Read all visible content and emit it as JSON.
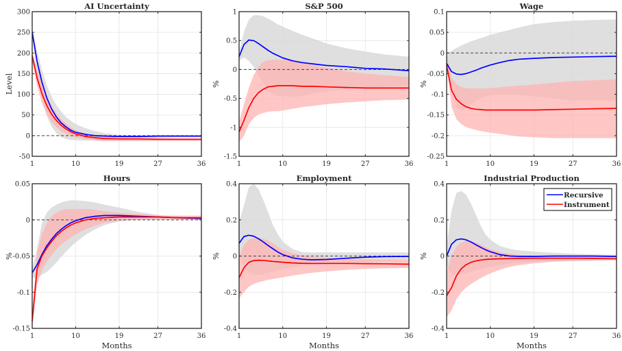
{
  "figure": {
    "legend": [
      {
        "label": "Recursive",
        "color": "#0000ff"
      },
      {
        "label": "Instrument",
        "color": "#ff0000"
      }
    ],
    "band_colors": {
      "recursive": "#d9d9d9",
      "instrument": "#ffb3b3"
    },
    "zero_line_color": "#404040"
  },
  "chart_data": [
    {
      "type": "line",
      "title": "AI Uncertainty",
      "ylabel": "Level",
      "xlabel": "",
      "x": [
        1,
        2,
        3,
        4,
        5,
        6,
        7,
        8,
        9,
        10,
        12,
        14,
        16,
        19,
        23,
        27,
        31,
        36
      ],
      "xticks": [
        "1",
        "10",
        "19",
        "27",
        "36"
      ],
      "xlim": [
        1,
        36
      ],
      "yticks": [
        "-50",
        "0",
        "50",
        "100",
        "150",
        "200",
        "250",
        "300"
      ],
      "ylim": [
        -50,
        300
      ],
      "series": [
        {
          "name": "Recursive",
          "values": [
            250,
            180,
            130,
            92,
            65,
            45,
            31,
            21,
            13,
            8,
            3,
            0,
            -1,
            -2,
            -2,
            -1,
            -1,
            -1
          ]
        },
        {
          "name": "Instrument",
          "values": [
            193,
            140,
            102,
            73,
            52,
            37,
            25,
            16,
            9,
            4,
            -2,
            -5,
            -7,
            -8,
            -8,
            -9,
            -9,
            -9
          ]
        }
      ],
      "bands": [
        {
          "name": "Recursive",
          "lower": [
            240,
            150,
            90,
            48,
            22,
            6,
            -3,
            -8,
            -10,
            -11,
            -12,
            -11,
            -10,
            -8,
            -6,
            -5,
            -4,
            -4
          ],
          "upper": [
            260,
            205,
            160,
            122,
            95,
            74,
            58,
            45,
            36,
            28,
            18,
            11,
            6,
            2,
            1,
            0,
            0,
            0
          ]
        },
        {
          "name": "Instrument",
          "lower": [
            180,
            120,
            80,
            52,
            34,
            20,
            11,
            4,
            -1,
            -4,
            -9,
            -12,
            -13,
            -13,
            -13,
            -13,
            -13,
            -13
          ]
        },
        {
          "name": "Instrument-upper",
          "upper": [
            205,
            160,
            124,
            94,
            71,
            54,
            40,
            29,
            20,
            13,
            5,
            1,
            -2,
            -4,
            -5,
            -5,
            -6,
            -6
          ]
        }
      ]
    },
    {
      "type": "line",
      "title": "S&P 500",
      "ylabel": "%",
      "xlabel": "",
      "x": [
        1,
        2,
        3,
        4,
        5,
        6,
        7,
        8,
        9,
        10,
        12,
        14,
        16,
        19,
        23,
        27,
        31,
        36
      ],
      "xticks": [
        "1",
        "10",
        "19",
        "27",
        "36"
      ],
      "xlim": [
        1,
        36
      ],
      "yticks": [
        "-1.5",
        "-1",
        "-0.5",
        "0",
        "0.5",
        "1"
      ],
      "ylim": [
        -1.5,
        1
      ],
      "series": [
        {
          "name": "Recursive",
          "values": [
            0.22,
            0.43,
            0.51,
            0.5,
            0.45,
            0.39,
            0.33,
            0.28,
            0.24,
            0.2,
            0.15,
            0.12,
            0.1,
            0.07,
            0.05,
            0.02,
            0.01,
            -0.02
          ]
        },
        {
          "name": "Instrument",
          "values": [
            -1.08,
            -0.88,
            -0.66,
            -0.5,
            -0.4,
            -0.34,
            -0.3,
            -0.29,
            -0.28,
            -0.28,
            -0.28,
            -0.29,
            -0.29,
            -0.3,
            -0.31,
            -0.32,
            -0.32,
            -0.32
          ]
        }
      ],
      "bands": [
        {
          "name": "Recursive",
          "lower": [
            0.15,
            0.21,
            0.15,
            0.05,
            -0.1,
            -0.25,
            -0.36,
            -0.43,
            -0.46,
            -0.46,
            -0.48,
            -0.46,
            -0.42,
            -0.38,
            -0.34,
            -0.31,
            -0.3,
            -0.28
          ],
          "upper": [
            0.3,
            0.65,
            0.86,
            0.94,
            0.94,
            0.92,
            0.88,
            0.83,
            0.78,
            0.74,
            0.67,
            0.6,
            0.54,
            0.45,
            0.37,
            0.31,
            0.26,
            0.22
          ]
        },
        {
          "name": "Instrument",
          "lower": [
            -1.25,
            -1.15,
            -0.95,
            -0.84,
            -0.78,
            -0.75,
            -0.73,
            -0.72,
            -0.72,
            -0.71,
            -0.68,
            -0.65,
            -0.63,
            -0.6,
            -0.57,
            -0.55,
            -0.53,
            -0.52
          ]
        },
        {
          "name": "Instrument-upper",
          "upper": [
            -0.9,
            -0.6,
            -0.32,
            -0.1,
            0.05,
            0.13,
            0.16,
            0.17,
            0.17,
            0.17,
            0.15,
            0.12,
            0.08,
            0.03,
            -0.03,
            -0.07,
            -0.1,
            -0.13
          ]
        }
      ]
    },
    {
      "type": "line",
      "title": "Wage",
      "ylabel": "%",
      "xlabel": "",
      "x": [
        1,
        2,
        3,
        4,
        5,
        6,
        7,
        8,
        9,
        10,
        12,
        14,
        16,
        19,
        23,
        27,
        31,
        36
      ],
      "xticks": [
        "1",
        "10",
        "19",
        "27",
        "36"
      ],
      "xlim": [
        1,
        36
      ],
      "yticks": [
        "-0.25",
        "-0.2",
        "-0.15",
        "-0.1",
        "-0.05",
        "0",
        "0.05",
        "0.1"
      ],
      "ylim": [
        -0.25,
        0.1
      ],
      "series": [
        {
          "name": "Recursive",
          "values": [
            -0.025,
            -0.045,
            -0.051,
            -0.052,
            -0.05,
            -0.046,
            -0.042,
            -0.037,
            -0.033,
            -0.029,
            -0.023,
            -0.018,
            -0.015,
            -0.013,
            -0.011,
            -0.01,
            -0.009,
            -0.008
          ]
        },
        {
          "name": "Instrument",
          "values": [
            -0.03,
            -0.09,
            -0.112,
            -0.123,
            -0.13,
            -0.134,
            -0.136,
            -0.137,
            -0.138,
            -0.138,
            -0.138,
            -0.138,
            -0.138,
            -0.138,
            -0.137,
            -0.136,
            -0.135,
            -0.134
          ]
        }
      ],
      "bands": [
        {
          "name": "Recursive",
          "lower": [
            -0.01,
            -0.08,
            -0.13,
            -0.14,
            -0.135,
            -0.125,
            -0.115,
            -0.11,
            -0.105,
            -0.103,
            -0.1,
            -0.1,
            -0.102,
            -0.105,
            -0.11,
            -0.115,
            -0.115,
            -0.115
          ],
          "upper": [
            0.0,
            0.005,
            0.012,
            0.018,
            0.023,
            0.028,
            0.032,
            0.036,
            0.04,
            0.044,
            0.05,
            0.056,
            0.062,
            0.07,
            0.075,
            0.078,
            0.08,
            0.081
          ]
        },
        {
          "name": "Instrument",
          "lower": [
            -0.03,
            -0.13,
            -0.16,
            -0.172,
            -0.179,
            -0.183,
            -0.186,
            -0.189,
            -0.191,
            -0.193,
            -0.196,
            -0.199,
            -0.202,
            -0.204,
            -0.206,
            -0.206,
            -0.206,
            -0.206
          ]
        },
        {
          "name": "Instrument-upper",
          "upper": [
            0.0,
            -0.06,
            -0.075,
            -0.082,
            -0.085,
            -0.086,
            -0.086,
            -0.086,
            -0.086,
            -0.085,
            -0.083,
            -0.081,
            -0.079,
            -0.076,
            -0.072,
            -0.068,
            -0.066,
            -0.064
          ]
        }
      ]
    },
    {
      "type": "line",
      "title": "Hours",
      "ylabel": "%",
      "xlabel": "Months",
      "x": [
        1,
        2,
        3,
        4,
        5,
        6,
        7,
        8,
        9,
        10,
        12,
        14,
        16,
        19,
        23,
        27,
        31,
        36
      ],
      "xticks": [
        "1",
        "10",
        "19",
        "27",
        "36"
      ],
      "xlim": [
        1,
        36
      ],
      "yticks": [
        "-0.15",
        "-0.1",
        "-0.05",
        "0",
        "0.05"
      ],
      "ylim": [
        -0.15,
        0.05
      ],
      "series": [
        {
          "name": "Recursive",
          "values": [
            -0.073,
            -0.062,
            -0.048,
            -0.036,
            -0.027,
            -0.019,
            -0.013,
            -0.008,
            -0.004,
            -0.001,
            0.003,
            0.005,
            0.006,
            0.006,
            0.005,
            0.004,
            0.003,
            0.002
          ]
        },
        {
          "name": "Instrument",
          "values": [
            -0.14,
            -0.068,
            -0.05,
            -0.039,
            -0.03,
            -0.022,
            -0.016,
            -0.011,
            -0.007,
            -0.004,
            0.0,
            0.002,
            0.003,
            0.004,
            0.004,
            0.004,
            0.003,
            0.003
          ]
        }
      ],
      "bands": [
        {
          "name": "Recursive",
          "lower": [
            -0.08,
            -0.08,
            -0.076,
            -0.072,
            -0.066,
            -0.059,
            -0.051,
            -0.044,
            -0.037,
            -0.031,
            -0.021,
            -0.013,
            -0.007,
            -0.002,
            0.0,
            0.0,
            0.0,
            0.0
          ],
          "upper": [
            -0.068,
            -0.04,
            -0.005,
            0.01,
            0.017,
            0.021,
            0.024,
            0.026,
            0.027,
            0.027,
            0.026,
            0.024,
            0.021,
            0.017,
            0.011,
            0.007,
            0.005,
            0.004
          ]
        },
        {
          "name": "Instrument",
          "lower": [
            -0.15,
            -0.09,
            -0.07,
            -0.058,
            -0.049,
            -0.041,
            -0.034,
            -0.029,
            -0.024,
            -0.02,
            -0.013,
            -0.008,
            -0.004,
            -0.001,
            0.0,
            0.001,
            0.001,
            0.001
          ]
        },
        {
          "name": "Instrument-upper",
          "upper": [
            -0.13,
            -0.045,
            -0.02,
            -0.005,
            0.005,
            0.01,
            0.013,
            0.015,
            0.015,
            0.015,
            0.015,
            0.014,
            0.012,
            0.01,
            0.008,
            0.006,
            0.006,
            0.006
          ]
        }
      ]
    },
    {
      "type": "line",
      "title": "Employment",
      "ylabel": "%",
      "xlabel": "Months",
      "x": [
        1,
        2,
        3,
        4,
        5,
        6,
        7,
        8,
        9,
        10,
        12,
        14,
        16,
        19,
        23,
        27,
        31,
        36
      ],
      "xticks": [
        "1",
        "10",
        "19",
        "27",
        "36"
      ],
      "xlim": [
        1,
        36
      ],
      "yticks": [
        "-0.4",
        "-0.2",
        "0",
        "0.2",
        "0.4"
      ],
      "ylim": [
        -0.4,
        0.4
      ],
      "series": [
        {
          "name": "Recursive",
          "values": [
            0.07,
            0.108,
            0.115,
            0.11,
            0.096,
            0.078,
            0.058,
            0.04,
            0.022,
            0.008,
            -0.01,
            -0.018,
            -0.021,
            -0.019,
            -0.012,
            -0.006,
            -0.003,
            -0.002
          ]
        },
        {
          "name": "Instrument",
          "values": [
            -0.12,
            -0.065,
            -0.035,
            -0.025,
            -0.023,
            -0.024,
            -0.027,
            -0.03,
            -0.032,
            -0.034,
            -0.038,
            -0.04,
            -0.041,
            -0.041,
            -0.041,
            -0.042,
            -0.043,
            -0.045
          ]
        }
      ],
      "bands": [
        {
          "name": "Recursive",
          "lower": [
            0.0,
            -0.06,
            -0.09,
            -0.105,
            -0.105,
            -0.1,
            -0.093,
            -0.086,
            -0.08,
            -0.073,
            -0.063,
            -0.055,
            -0.05,
            -0.045,
            -0.038,
            -0.032,
            -0.028,
            -0.026
          ],
          "upper": [
            0.19,
            0.28,
            0.38,
            0.4,
            0.37,
            0.31,
            0.24,
            0.17,
            0.12,
            0.08,
            0.04,
            0.022,
            0.02,
            0.02,
            0.02,
            0.02,
            0.02,
            0.02
          ]
        },
        {
          "name": "Instrument",
          "lower": [
            -0.235,
            -0.2,
            -0.17,
            -0.155,
            -0.145,
            -0.138,
            -0.132,
            -0.127,
            -0.122,
            -0.117,
            -0.108,
            -0.1,
            -0.093,
            -0.085,
            -0.077,
            -0.071,
            -0.068,
            -0.066
          ]
        },
        {
          "name": "Instrument-upper",
          "upper": [
            0.0,
            0.06,
            0.09,
            0.1,
            0.1,
            0.095,
            0.085,
            0.07,
            0.05,
            0.035,
            0.015,
            0.005,
            -0.005,
            -0.01,
            -0.015,
            -0.018,
            -0.02,
            -0.022
          ]
        }
      ]
    },
    {
      "type": "line",
      "title": "Industrial Production",
      "ylabel": "%",
      "xlabel": "Months",
      "x": [
        1,
        2,
        3,
        4,
        5,
        6,
        7,
        8,
        9,
        10,
        12,
        14,
        16,
        19,
        23,
        27,
        31,
        36
      ],
      "xticks": [
        "1",
        "10",
        "19",
        "27",
        "36"
      ],
      "xlim": [
        1,
        36
      ],
      "yticks": [
        "-0.4",
        "-0.2",
        "0",
        "0.2",
        "0.4"
      ],
      "ylim": [
        -0.4,
        0.4
      ],
      "legend_position": "top-right",
      "series": [
        {
          "name": "Recursive",
          "values": [
            0.0,
            0.065,
            0.09,
            0.095,
            0.09,
            0.078,
            0.063,
            0.048,
            0.035,
            0.024,
            0.008,
            0.0,
            -0.002,
            -0.002,
            0.0,
            0.0,
            0.0,
            -0.002
          ]
        },
        {
          "name": "Instrument",
          "values": [
            -0.22,
            -0.175,
            -0.11,
            -0.07,
            -0.048,
            -0.035,
            -0.027,
            -0.022,
            -0.019,
            -0.017,
            -0.015,
            -0.014,
            -0.013,
            -0.012,
            -0.012,
            -0.012,
            -0.013,
            -0.015
          ]
        }
      ],
      "bands": [
        {
          "name": "Recursive",
          "lower": [
            -0.06,
            -0.1,
            -0.105,
            -0.1,
            -0.095,
            -0.088,
            -0.08,
            -0.073,
            -0.066,
            -0.06,
            -0.05,
            -0.043,
            -0.038,
            -0.032,
            -0.025,
            -0.02,
            -0.016,
            -0.013
          ],
          "upper": [
            0.06,
            0.25,
            0.35,
            0.36,
            0.34,
            0.29,
            0.23,
            0.17,
            0.12,
            0.09,
            0.055,
            0.04,
            0.032,
            0.025,
            0.018,
            0.013,
            0.01,
            0.008
          ]
        },
        {
          "name": "Instrument",
          "lower": [
            -0.34,
            -0.3,
            -0.24,
            -0.2,
            -0.175,
            -0.155,
            -0.138,
            -0.122,
            -0.108,
            -0.095,
            -0.075,
            -0.06,
            -0.05,
            -0.04,
            -0.032,
            -0.028,
            -0.025,
            -0.024
          ]
        },
        {
          "name": "Instrument-upper",
          "upper": [
            -0.09,
            0.0,
            0.05,
            0.075,
            0.083,
            0.082,
            0.075,
            0.063,
            0.05,
            0.038,
            0.022,
            0.012,
            0.006,
            0.002,
            0.0,
            -0.002,
            -0.003,
            -0.004
          ]
        }
      ]
    }
  ]
}
